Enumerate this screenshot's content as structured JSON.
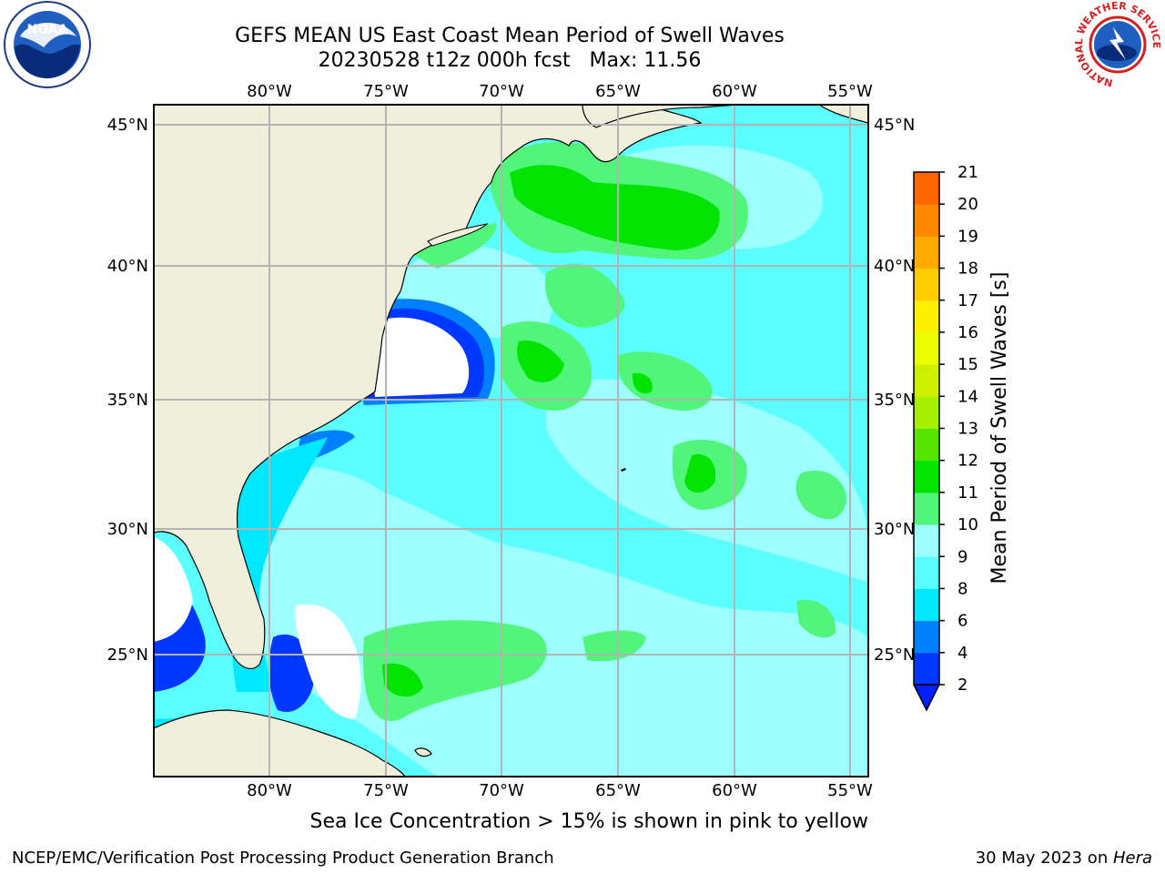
{
  "header": {
    "title_line1": "GEFS MEAN US East Coast Mean Period of Swell Waves",
    "title_line2": "20230528 t12z 000h fcst   Max: 11.56"
  },
  "logos": {
    "left": "NOAA",
    "right_ring_text": "NATIONAL WEATHER SERVICE"
  },
  "map": {
    "lon_labels": [
      "80°W",
      "75°W",
      "70°W",
      "65°W",
      "60°W",
      "55°W"
    ],
    "lat_labels": [
      "45°N",
      "40°N",
      "35°N",
      "30°N",
      "25°N"
    ]
  },
  "colorbar": {
    "label": "Mean Period of Swell Waves [s]",
    "tick_labels": [
      "2",
      "4",
      "6",
      "8",
      "9",
      "10",
      "11",
      "12",
      "13",
      "14",
      "15",
      "16",
      "17",
      "18",
      "19",
      "20",
      "21"
    ],
    "colors": [
      "#0038ff",
      "#0080ff",
      "#00e8ff",
      "#59ffff",
      "#9effff",
      "#50f57a",
      "#00e400",
      "#55e400",
      "#a4f000",
      "#ccf000",
      "#eaff00",
      "#fff000",
      "#ffcc00",
      "#ffaa00",
      "#ff8800",
      "#ff6600",
      "#ff3300",
      "#ff0000"
    ],
    "underflow_color": "#0020ff"
  },
  "colors": {
    "land": "#efefdc",
    "ocean_base": "#5cffff",
    "grid": "#b3b3b3",
    "no_data": "#ffffff"
  },
  "footnote": "Sea Ice Concentration > 15% is shown in pink to yellow",
  "footer": {
    "left": "NCEP/EMC/Verification Post Processing Product Generation Branch",
    "right_date": "30 May 2023 on ",
    "right_host": "Hera"
  }
}
